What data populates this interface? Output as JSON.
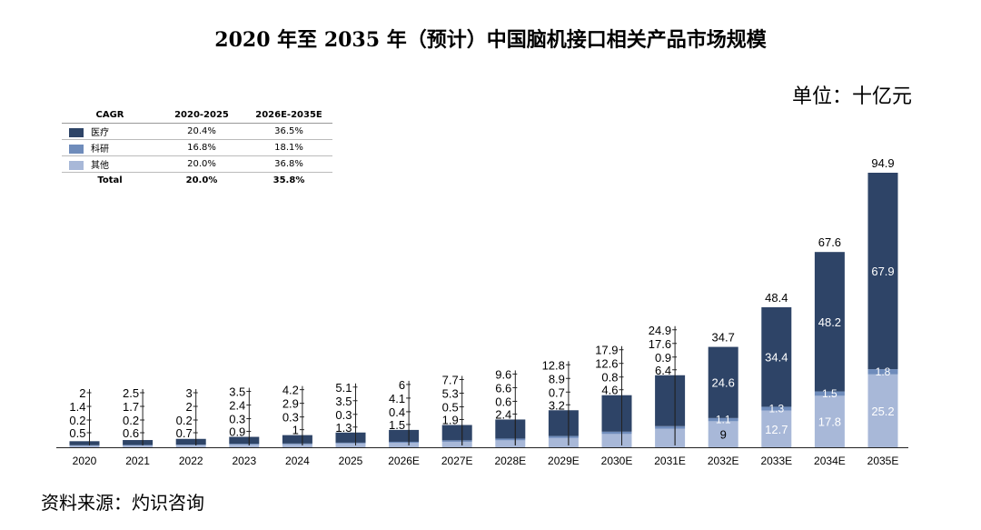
{
  "title": "2020 年至 2035 年（预计）中国脑机接口相关产品市场规模",
  "unit": "单位：十亿元",
  "source": "资料来源：灼识咨询",
  "colors": {
    "medical": "#2e4467",
    "research": "#6f8cbb",
    "other": "#a8b8d8"
  },
  "cagr_table": {
    "header": [
      "CAGR",
      "2020-2025",
      "2026E-2035E"
    ],
    "rows": [
      {
        "label": "医疗",
        "color": "#2e4467",
        "v1": "20.4%",
        "v2": "36.5%"
      },
      {
        "label": "科研",
        "color": "#6f8cbb",
        "v1": "16.8%",
        "v2": "18.1%"
      },
      {
        "label": "其他",
        "color": "#a8b8d8",
        "v1": "20.0%",
        "v2": "36.8%"
      }
    ],
    "total": {
      "label": "Total",
      "v1": "20.0%",
      "v2": "35.8%"
    }
  },
  "chart_data": {
    "type": "bar",
    "stacked": true,
    "categories": [
      "2020",
      "2021",
      "2022",
      "2023",
      "2024",
      "2025",
      "2026E",
      "2027E",
      "2028E",
      "2029E",
      "2030E",
      "2031E",
      "2032E",
      "2033E",
      "2034E",
      "2035E"
    ],
    "series": [
      {
        "name": "其他",
        "values": [
          0.5,
          0.6,
          0.7,
          0.9,
          1.0,
          1.3,
          1.5,
          1.9,
          2.4,
          3.2,
          4.6,
          6.4,
          9.0,
          12.7,
          17.8,
          25.2
        ]
      },
      {
        "name": "科研",
        "values": [
          0.2,
          0.2,
          0.2,
          0.3,
          0.3,
          0.3,
          0.4,
          0.5,
          0.6,
          0.7,
          0.8,
          0.9,
          1.1,
          1.3,
          1.5,
          1.8
        ]
      },
      {
        "name": "医疗",
        "values": [
          1.4,
          1.7,
          2.0,
          2.4,
          2.9,
          3.5,
          4.1,
          5.3,
          6.6,
          8.9,
          12.6,
          17.6,
          24.6,
          34.4,
          48.2,
          67.9
        ]
      }
    ],
    "totals": [
      2.0,
      2.5,
      3.0,
      3.5,
      4.2,
      5.1,
      6.0,
      7.7,
      9.6,
      12.8,
      17.9,
      24.9,
      34.7,
      48.4,
      67.6,
      94.9
    ],
    "ylim": [
      0,
      94.9
    ]
  }
}
